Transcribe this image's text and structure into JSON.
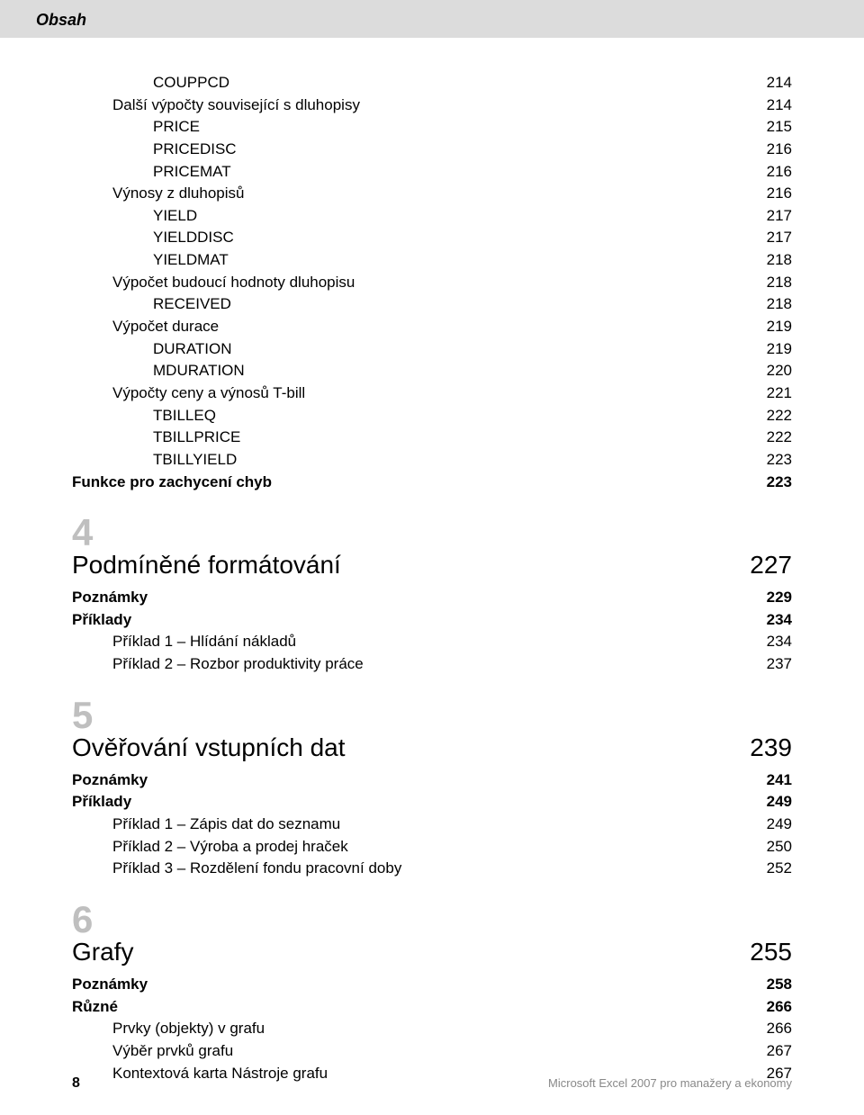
{
  "header": {
    "title": "Obsah"
  },
  "top_items": [
    {
      "label": "COUPPCD",
      "page": "214",
      "indent": 2,
      "bold": false
    },
    {
      "label": "Další výpočty související s dluhopisy",
      "page": "214",
      "indent": 1,
      "bold": false
    },
    {
      "label": "PRICE",
      "page": "215",
      "indent": 2,
      "bold": false
    },
    {
      "label": "PRICEDISC",
      "page": "216",
      "indent": 2,
      "bold": false
    },
    {
      "label": "PRICEMAT",
      "page": "216",
      "indent": 2,
      "bold": false
    },
    {
      "label": "Výnosy z dluhopisů",
      "page": "216",
      "indent": 1,
      "bold": false
    },
    {
      "label": "YIELD",
      "page": "217",
      "indent": 2,
      "bold": false
    },
    {
      "label": "YIELDDISC",
      "page": "217",
      "indent": 2,
      "bold": false
    },
    {
      "label": "YIELDMAT",
      "page": "218",
      "indent": 2,
      "bold": false
    },
    {
      "label": "Výpočet budoucí hodnoty dluhopisu",
      "page": "218",
      "indent": 1,
      "bold": false
    },
    {
      "label": "RECEIVED",
      "page": "218",
      "indent": 2,
      "bold": false
    },
    {
      "label": "Výpočet durace",
      "page": "219",
      "indent": 1,
      "bold": false
    },
    {
      "label": "DURATION",
      "page": "219",
      "indent": 2,
      "bold": false
    },
    {
      "label": "MDURATION",
      "page": "220",
      "indent": 2,
      "bold": false
    },
    {
      "label": "Výpočty ceny a výnosů T-bill",
      "page": "221",
      "indent": 1,
      "bold": false
    },
    {
      "label": "TBILLEQ",
      "page": "222",
      "indent": 2,
      "bold": false
    },
    {
      "label": "TBILLPRICE",
      "page": "222",
      "indent": 2,
      "bold": false
    },
    {
      "label": "TBILLYIELD",
      "page": "223",
      "indent": 2,
      "bold": false
    },
    {
      "label": "Funkce pro zachycení chyb",
      "page": "223",
      "indent": 0,
      "bold": true
    }
  ],
  "chapters": [
    {
      "num": "4",
      "title": "Podmíněné formátování",
      "page": "227",
      "items": [
        {
          "label": "Poznámky",
          "page": "229",
          "indent": 0,
          "bold": true
        },
        {
          "label": "Příklady",
          "page": "234",
          "indent": 0,
          "bold": true
        },
        {
          "label": "Příklad 1 – Hlídání nákladů",
          "page": "234",
          "indent": 1,
          "bold": false
        },
        {
          "label": "Příklad 2 – Rozbor produktivity práce",
          "page": "237",
          "indent": 1,
          "bold": false
        }
      ]
    },
    {
      "num": "5",
      "title": "Ověřování vstupních dat",
      "page": "239",
      "items": [
        {
          "label": "Poznámky",
          "page": "241",
          "indent": 0,
          "bold": true
        },
        {
          "label": "Příklady",
          "page": "249",
          "indent": 0,
          "bold": true
        },
        {
          "label": "Příklad 1 – Zápis dat do seznamu",
          "page": "249",
          "indent": 1,
          "bold": false
        },
        {
          "label": "Příklad 2 – Výroba a prodej hraček",
          "page": "250",
          "indent": 1,
          "bold": false
        },
        {
          "label": "Příklad 3 – Rozdělení fondu pracovní doby",
          "page": "252",
          "indent": 1,
          "bold": false
        }
      ]
    },
    {
      "num": "6",
      "title": "Grafy",
      "page": "255",
      "items": [
        {
          "label": "Poznámky",
          "page": "258",
          "indent": 0,
          "bold": true
        },
        {
          "label": "Různé",
          "page": "266",
          "indent": 0,
          "bold": true
        },
        {
          "label": "Prvky (objekty) v grafu",
          "page": "266",
          "indent": 1,
          "bold": false
        },
        {
          "label": "Výběr prvků grafu",
          "page": "267",
          "indent": 1,
          "bold": false
        },
        {
          "label": "Kontextová karta Nástroje grafu",
          "page": "267",
          "indent": 1,
          "bold": false
        }
      ]
    }
  ],
  "footer": {
    "pagenum": "8",
    "book": "Microsoft Excel 2007 pro manažery a ekonomy"
  }
}
